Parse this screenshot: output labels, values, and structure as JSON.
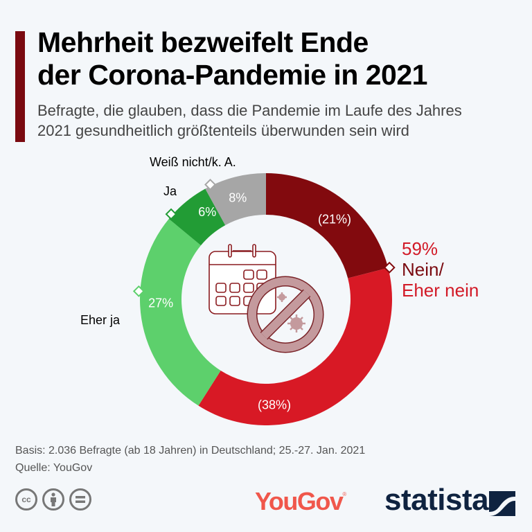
{
  "header": {
    "title_line1": "Mehrheit bezweifelt Ende",
    "title_line2": "der Corona-Pandemie in 2021",
    "subtitle_line1": "Befragte, die glauben, dass die Pandemie im Laufe des Jahres",
    "subtitle_line2": "2021 gesundheitlich größtenteils überwunden sein wird",
    "accent_color": "#7a0a10"
  },
  "chart_data": {
    "type": "pie",
    "variant": "donut",
    "title": "Mehrheit bezweifelt Ende der Corona-Pandemie in 2021",
    "unit": "%",
    "slices": [
      {
        "key": "nein",
        "label": "Nein",
        "value": 21,
        "display": "(21%)",
        "color": "#820a0e"
      },
      {
        "key": "eher_nein",
        "label": "Eher nein",
        "value": 38,
        "display": "(38%)",
        "color": "#d81925"
      },
      {
        "key": "eher_ja",
        "label": "Eher ja",
        "value": 27,
        "display": "27%",
        "color": "#5dd06c"
      },
      {
        "key": "ja",
        "label": "Ja",
        "value": 6,
        "display": "6%",
        "color": "#229c35"
      },
      {
        "key": "weiss_nicht",
        "label": "Weiß nicht/k. A.",
        "value": 8,
        "display": "8%",
        "color": "#a6a6a6"
      }
    ],
    "group_annotation": {
      "total": "59%",
      "line1": "Nein/",
      "line2": "Eher nein"
    },
    "callout_labels": {
      "weiss_nicht": "Weiß nicht/k. A.",
      "ja": "Ja",
      "eher_ja": "Eher ja"
    },
    "center_icon": "calendar-with-no-virus-icon"
  },
  "footer": {
    "basis": "Basis: 2.036 Befragte (ab 18 Jahren) in Deutschland; 25.-27. Jan. 2021",
    "source": "Quelle: YouGov",
    "license_icons": [
      "cc-icon",
      "attribution-icon",
      "no-derivatives-icon"
    ],
    "cc_text": "cc",
    "yougov_logo": "YouGov",
    "yougov_reg": "®",
    "statista_logo": "statista"
  }
}
